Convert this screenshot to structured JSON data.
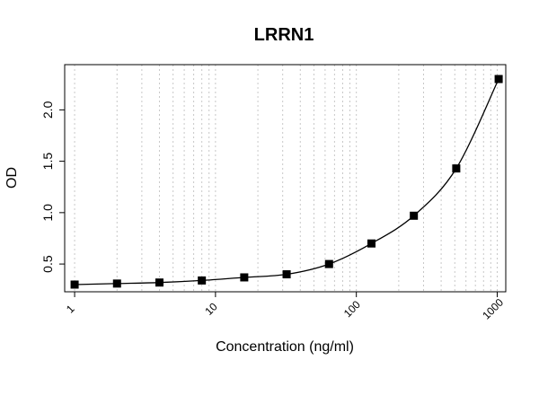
{
  "chart_data": {
    "type": "scatter",
    "title": "LRRN1",
    "xlabel": "Concentration (ng/ml)",
    "ylabel": "OD",
    "x_scale": "log",
    "xlim": [
      0.85,
      1150
    ],
    "ylim": [
      0.23,
      2.44
    ],
    "x_ticks": [
      1,
      10,
      100,
      1000
    ],
    "x_tick_labels": [
      "1",
      "10",
      "100",
      "1000"
    ],
    "y_ticks": [
      0.5,
      1.0,
      1.5,
      2.0
    ],
    "y_tick_labels": [
      "0.5",
      "1.0",
      "1.5",
      "2.0"
    ],
    "grid": "vertical dotted (log decades)",
    "series": [
      {
        "marker": "square",
        "color": "#000000",
        "x": [
          1,
          2,
          4,
          8,
          16,
          32,
          64,
          128,
          256,
          512,
          1024
        ],
        "y": [
          0.3,
          0.31,
          0.32,
          0.34,
          0.37,
          0.4,
          0.5,
          0.7,
          0.97,
          1.43,
          2.3
        ]
      }
    ],
    "fit_curve": true
  }
}
